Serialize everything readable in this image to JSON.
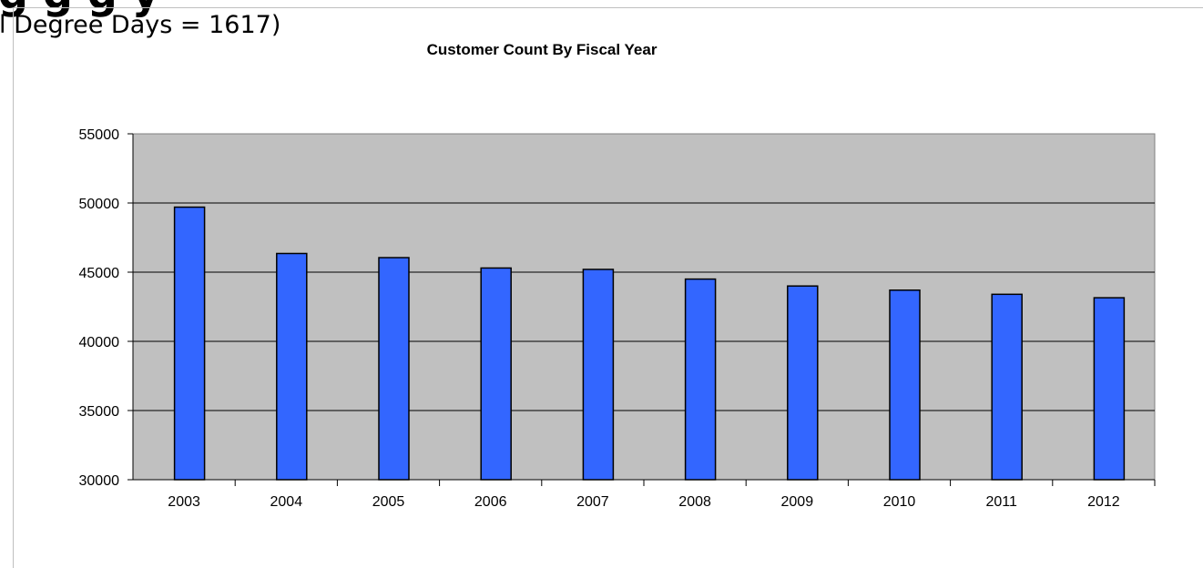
{
  "slide": {
    "heading_fragment": "g      g  g    y",
    "subheading": "l Degree Days = 1617)"
  },
  "chart_data": {
    "type": "bar",
    "title": "Customer Count By Fiscal Year",
    "xlabel": "",
    "ylabel": "",
    "categories": [
      "2003",
      "2004",
      "2005",
      "2006",
      "2007",
      "2008",
      "2009",
      "2010",
      "2011",
      "2012"
    ],
    "values": [
      49700,
      46350,
      46050,
      45300,
      45200,
      44500,
      44000,
      43700,
      43400,
      43150
    ],
    "ylim": [
      30000,
      55000
    ],
    "yticks": [
      30000,
      35000,
      40000,
      45000,
      50000,
      55000
    ],
    "grid": true,
    "legend": "none",
    "colors": {
      "bar": "#3366ff",
      "plot_background": "#c0c0c0"
    }
  }
}
